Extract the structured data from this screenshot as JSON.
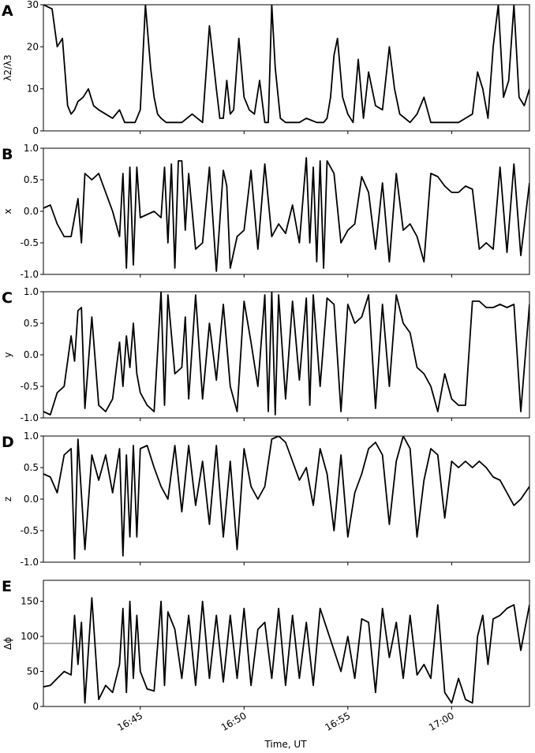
{
  "figure": {
    "xlabel": "Time, UT",
    "x_tick_labels": [
      "16:45",
      "16:50",
      "16:55",
      "17:00"
    ],
    "line_color": "#000000",
    "reference_line_color": "#555555"
  },
  "chart_data": [
    {
      "type": "line",
      "panel": "A",
      "ylabel": "λ2/λ3",
      "ylim": [
        0,
        30
      ],
      "yticks": [
        0,
        10,
        20,
        30
      ],
      "xlim": [
        "16:40:20",
        "17:03:45"
      ],
      "series": [
        {
          "x": [
            "16:40:20",
            "16:40:45",
            "16:41:00",
            "16:41:15",
            "16:41:30",
            "16:41:40",
            "16:41:50",
            "16:42:00",
            "16:42:15",
            "16:42:30",
            "16:42:45",
            "16:43:00",
            "16:43:20",
            "16:43:40",
            "16:44:00",
            "16:44:15",
            "16:44:30",
            "16:44:45",
            "16:45:00",
            "16:45:15",
            "16:45:30",
            "16:45:40",
            "16:45:50",
            "16:46:00",
            "16:46:15",
            "16:46:30",
            "16:47:00",
            "16:47:30",
            "16:48:00",
            "16:48:20",
            "16:48:40",
            "16:48:50",
            "16:49:00",
            "16:49:10",
            "16:49:20",
            "16:49:30",
            "16:49:45",
            "16:50:00",
            "16:50:15",
            "16:50:30",
            "16:50:45",
            "16:51:00",
            "16:51:10",
            "16:51:20",
            "16:51:30",
            "16:51:45",
            "16:52:00",
            "16:52:20",
            "16:52:40",
            "16:53:00",
            "16:53:30",
            "16:53:50",
            "16:54:00",
            "16:54:10",
            "16:54:20",
            "16:54:30",
            "16:54:45",
            "16:55:00",
            "16:55:15",
            "16:55:30",
            "16:55:45",
            "16:56:00",
            "16:56:20",
            "16:56:40",
            "16:57:00",
            "16:57:15",
            "16:57:30",
            "16:57:45",
            "16:58:00",
            "16:58:20",
            "16:58:40",
            "16:59:00",
            "16:59:20",
            "16:59:40",
            "17:00:00",
            "17:00:20",
            "17:00:40",
            "17:01:00",
            "17:01:15",
            "17:01:30",
            "17:01:45",
            "17:02:00",
            "17:02:15",
            "17:02:30",
            "17:02:45",
            "17:03:00",
            "17:03:15",
            "17:03:30",
            "17:03:45"
          ],
          "y": [
            30,
            29,
            20,
            22,
            6,
            4,
            5,
            7,
            8,
            10,
            6,
            5,
            4,
            3,
            5,
            2,
            2,
            2,
            5,
            30,
            15,
            8,
            4,
            3,
            2,
            2,
            2,
            4,
            2,
            25,
            10,
            3,
            3,
            12,
            4,
            5,
            22,
            8,
            5,
            4,
            12,
            2,
            2,
            30,
            15,
            3,
            2,
            2,
            2,
            3,
            2,
            2,
            3,
            8,
            18,
            22,
            8,
            4,
            2,
            17,
            3,
            14,
            6,
            5,
            20,
            10,
            4,
            3,
            2,
            4,
            8,
            2,
            2,
            2,
            2,
            2,
            3,
            4,
            14,
            10,
            3,
            20,
            30,
            8,
            12,
            30,
            8,
            6,
            10
          ]
        }
      ]
    },
    {
      "type": "line",
      "panel": "B",
      "ylabel": "x",
      "ylim": [
        -1.0,
        1.0
      ],
      "yticks": [
        -1.0,
        -0.5,
        0.0,
        0.5,
        1.0
      ],
      "xlim": [
        "16:40:20",
        "17:03:45"
      ],
      "series": [
        {
          "x": [
            "16:40:20",
            "16:40:40",
            "16:41:00",
            "16:41:20",
            "16:41:40",
            "16:42:00",
            "16:42:10",
            "16:42:20",
            "16:42:40",
            "16:43:00",
            "16:43:20",
            "16:43:40",
            "16:44:00",
            "16:44:10",
            "16:44:20",
            "16:44:30",
            "16:44:40",
            "16:44:50",
            "16:45:00",
            "16:45:20",
            "16:45:40",
            "16:46:00",
            "16:46:10",
            "16:46:20",
            "16:46:30",
            "16:46:40",
            "16:46:50",
            "16:47:00",
            "16:47:10",
            "16:47:20",
            "16:47:40",
            "16:48:00",
            "16:48:20",
            "16:48:40",
            "16:49:00",
            "16:49:10",
            "16:49:20",
            "16:49:40",
            "16:50:00",
            "16:50:20",
            "16:50:40",
            "16:51:00",
            "16:51:20",
            "16:51:40",
            "16:52:00",
            "16:52:20",
            "16:52:40",
            "16:53:00",
            "16:53:10",
            "16:53:20",
            "16:53:30",
            "16:53:40",
            "16:53:50",
            "16:54:00",
            "16:54:20",
            "16:54:40",
            "16:55:00",
            "16:55:20",
            "16:55:40",
            "16:56:00",
            "16:56:20",
            "16:56:40",
            "16:57:00",
            "16:57:20",
            "16:57:40",
            "16:58:00",
            "16:58:20",
            "16:58:40",
            "16:59:00",
            "16:59:20",
            "16:59:40",
            "17:00:00",
            "17:00:20",
            "17:00:40",
            "17:01:00",
            "17:01:20",
            "17:01:40",
            "17:02:00",
            "17:02:20",
            "17:02:40",
            "17:03:00",
            "17:03:20",
            "17:03:45"
          ],
          "y": [
            0.05,
            0.1,
            -0.2,
            -0.4,
            -0.4,
            0.2,
            -0.5,
            0.6,
            0.5,
            0.6,
            0.3,
            0.0,
            -0.4,
            0.6,
            -0.9,
            0.7,
            -0.85,
            0.7,
            -0.1,
            -0.05,
            0.0,
            -0.1,
            0.7,
            -0.5,
            0.75,
            -0.9,
            0.8,
            0.8,
            -0.3,
            0.6,
            -0.6,
            -0.5,
            0.7,
            -0.95,
            0.65,
            0.4,
            -0.9,
            -0.4,
            -0.3,
            0.65,
            -0.6,
            0.75,
            -0.4,
            -0.2,
            -0.35,
            0.1,
            -0.5,
            0.85,
            -0.5,
            0.7,
            -0.8,
            0.8,
            -0.9,
            0.8,
            0.6,
            -0.5,
            -0.3,
            -0.2,
            0.55,
            0.3,
            -0.6,
            0.45,
            -0.8,
            0.6,
            -0.3,
            -0.2,
            -0.4,
            -0.8,
            0.6,
            0.55,
            0.4,
            0.3,
            0.3,
            0.4,
            0.35,
            -0.6,
            -0.5,
            -0.6,
            0.7,
            -0.65,
            0.75,
            -0.7,
            0.45
          ]
        }
      ]
    },
    {
      "type": "line",
      "panel": "C",
      "ylabel": "y",
      "ylim": [
        -1.0,
        1.0
      ],
      "yticks": [
        -1.0,
        -0.5,
        0.0,
        0.5,
        1.0
      ],
      "xlim": [
        "16:40:20",
        "17:03:45"
      ],
      "series": [
        {
          "x": [
            "16:40:20",
            "16:40:40",
            "16:41:00",
            "16:41:20",
            "16:41:40",
            "16:41:50",
            "16:42:00",
            "16:42:10",
            "16:42:20",
            "16:42:40",
            "16:43:00",
            "16:43:20",
            "16:43:40",
            "16:44:00",
            "16:44:10",
            "16:44:20",
            "16:44:30",
            "16:44:40",
            "16:44:50",
            "16:45:00",
            "16:45:20",
            "16:45:40",
            "16:46:00",
            "16:46:10",
            "16:46:20",
            "16:46:40",
            "16:47:00",
            "16:47:10",
            "16:47:20",
            "16:47:40",
            "16:48:00",
            "16:48:20",
            "16:48:40",
            "16:49:00",
            "16:49:20",
            "16:49:40",
            "16:50:00",
            "16:50:20",
            "16:50:40",
            "16:51:00",
            "16:51:10",
            "16:51:20",
            "16:51:30",
            "16:51:40",
            "16:52:00",
            "16:52:20",
            "16:52:40",
            "16:53:00",
            "16:53:10",
            "16:53:20",
            "16:53:40",
            "16:54:00",
            "16:54:20",
            "16:54:40",
            "16:55:00",
            "16:55:20",
            "16:55:40",
            "16:56:00",
            "16:56:20",
            "16:56:40",
            "16:57:00",
            "16:57:20",
            "16:57:40",
            "16:58:00",
            "16:58:20",
            "16:58:40",
            "16:59:00",
            "16:59:20",
            "16:59:40",
            "17:00:00",
            "17:00:20",
            "17:00:40",
            "17:01:00",
            "17:01:20",
            "17:01:40",
            "17:02:00",
            "17:02:20",
            "17:02:40",
            "17:03:00",
            "17:03:20",
            "17:03:45"
          ],
          "y": [
            -0.9,
            -0.95,
            -0.6,
            -0.5,
            0.3,
            -0.1,
            0.7,
            0.75,
            -0.85,
            0.6,
            -0.8,
            -0.9,
            -0.7,
            0.2,
            -0.5,
            0.3,
            -0.2,
            0.5,
            -0.3,
            -0.6,
            -0.8,
            -0.9,
            1.0,
            -0.8,
            0.95,
            -0.3,
            -0.2,
            0.6,
            -0.7,
            0.95,
            -0.7,
            0.5,
            -0.4,
            0.8,
            -0.5,
            -0.9,
            0.85,
            0.2,
            -0.5,
            0.95,
            -0.9,
            1.0,
            -0.95,
            0.95,
            -0.7,
            0.85,
            -0.4,
            0.9,
            -0.8,
            0.95,
            -0.5,
            0.9,
            0.8,
            -0.9,
            0.8,
            0.5,
            0.6,
            0.95,
            -0.85,
            0.8,
            -0.5,
            0.95,
            0.5,
            0.35,
            -0.2,
            -0.3,
            -0.5,
            -0.9,
            -0.3,
            -0.7,
            -0.8,
            -0.8,
            0.85,
            0.85,
            0.75,
            0.75,
            0.8,
            0.75,
            0.8,
            -0.9,
            0.8
          ]
        }
      ]
    },
    {
      "type": "line",
      "panel": "D",
      "ylabel": "z",
      "ylim": [
        -1.0,
        1.0
      ],
      "yticks": [
        -1.0,
        -0.5,
        0.0,
        0.5,
        1.0
      ],
      "xlim": [
        "16:40:20",
        "17:03:45"
      ],
      "series": [
        {
          "x": [
            "16:40:20",
            "16:40:40",
            "16:41:00",
            "16:41:20",
            "16:41:40",
            "16:41:50",
            "16:42:00",
            "16:42:20",
            "16:42:40",
            "16:43:00",
            "16:43:20",
            "16:43:40",
            "16:44:00",
            "16:44:10",
            "16:44:20",
            "16:44:30",
            "16:44:40",
            "16:44:50",
            "16:45:00",
            "16:45:20",
            "16:45:40",
            "16:46:00",
            "16:46:20",
            "16:46:40",
            "16:47:00",
            "16:47:20",
            "16:47:40",
            "16:48:00",
            "16:48:20",
            "16:48:40",
            "16:49:00",
            "16:49:20",
            "16:49:40",
            "16:50:00",
            "16:50:20",
            "16:50:40",
            "16:51:00",
            "16:51:20",
            "16:51:40",
            "16:52:00",
            "16:52:20",
            "16:52:40",
            "16:53:00",
            "16:53:20",
            "16:53:40",
            "16:54:00",
            "16:54:20",
            "16:54:40",
            "16:55:00",
            "16:55:20",
            "16:55:40",
            "16:56:00",
            "16:56:20",
            "16:56:40",
            "16:57:00",
            "16:57:20",
            "16:57:40",
            "16:58:00",
            "16:58:20",
            "16:58:40",
            "16:59:00",
            "16:59:20",
            "16:59:40",
            "17:00:00",
            "17:00:20",
            "17:00:40",
            "17:01:00",
            "17:01:20",
            "17:01:40",
            "17:02:00",
            "17:02:20",
            "17:02:40",
            "17:03:00",
            "17:03:20",
            "17:03:45"
          ],
          "y": [
            0.4,
            0.35,
            0.1,
            0.7,
            0.8,
            -0.95,
            0.95,
            -0.8,
            0.7,
            0.3,
            0.7,
            0.1,
            0.8,
            -0.9,
            0.7,
            -0.6,
            0.85,
            -0.6,
            0.8,
            0.85,
            0.5,
            0.2,
            0.0,
            0.85,
            -0.2,
            0.85,
            -0.1,
            0.6,
            -0.4,
            0.85,
            -0.6,
            0.6,
            -0.8,
            0.8,
            0.2,
            0.0,
            0.2,
            0.95,
            1.0,
            0.9,
            0.6,
            0.3,
            0.5,
            -0.1,
            0.8,
            0.4,
            -0.5,
            0.7,
            -0.6,
            0.1,
            0.4,
            0.8,
            0.9,
            0.7,
            -0.4,
            0.6,
            1.0,
            0.8,
            -0.6,
            0.3,
            0.8,
            0.7,
            -0.3,
            0.6,
            0.5,
            0.6,
            0.5,
            0.6,
            0.5,
            0.35,
            0.3,
            0.1,
            -0.1,
            0.0,
            0.2
          ]
        }
      ]
    },
    {
      "type": "line",
      "panel": "E",
      "ylabel": "Δϕ",
      "ylim": [
        0,
        180
      ],
      "yticks": [
        0,
        50,
        100,
        150
      ],
      "reference_line_y": 90,
      "xlim": [
        "16:40:20",
        "17:03:45"
      ],
      "series": [
        {
          "x": [
            "16:40:20",
            "16:40:40",
            "16:41:00",
            "16:41:20",
            "16:41:40",
            "16:41:50",
            "16:42:00",
            "16:42:10",
            "16:42:20",
            "16:42:40",
            "16:43:00",
            "16:43:20",
            "16:43:40",
            "16:44:00",
            "16:44:10",
            "16:44:20",
            "16:44:30",
            "16:44:40",
            "16:44:50",
            "16:45:00",
            "16:45:20",
            "16:45:40",
            "16:46:00",
            "16:46:10",
            "16:46:20",
            "16:46:40",
            "16:47:00",
            "16:47:20",
            "16:47:40",
            "16:48:00",
            "16:48:20",
            "16:48:40",
            "16:49:00",
            "16:49:20",
            "16:49:40",
            "16:50:00",
            "16:50:20",
            "16:50:40",
            "16:51:00",
            "16:51:20",
            "16:51:40",
            "16:52:00",
            "16:52:20",
            "16:52:40",
            "16:53:00",
            "16:53:20",
            "16:53:40",
            "16:54:00",
            "16:54:20",
            "16:54:40",
            "16:55:00",
            "16:55:20",
            "16:55:40",
            "16:56:00",
            "16:56:20",
            "16:56:40",
            "16:57:00",
            "16:57:20",
            "16:57:40",
            "16:58:00",
            "16:58:20",
            "16:58:40",
            "16:59:00",
            "16:59:20",
            "16:59:40",
            "17:00:00",
            "17:00:20",
            "17:00:40",
            "17:01:00",
            "17:01:15",
            "17:01:30",
            "17:01:45",
            "17:02:00",
            "17:02:20",
            "17:02:40",
            "17:03:00",
            "17:03:20",
            "17:03:45"
          ],
          "y": [
            28,
            30,
            40,
            50,
            45,
            130,
            60,
            120,
            5,
            155,
            10,
            30,
            20,
            60,
            140,
            20,
            150,
            40,
            130,
            50,
            25,
            22,
            150,
            30,
            135,
            110,
            40,
            130,
            30,
            150,
            40,
            130,
            35,
            130,
            40,
            140,
            30,
            110,
            120,
            40,
            140,
            30,
            130,
            40,
            120,
            30,
            140,
            110,
            80,
            50,
            100,
            40,
            125,
            120,
            20,
            140,
            70,
            120,
            40,
            130,
            45,
            60,
            40,
            145,
            20,
            5,
            40,
            10,
            5,
            100,
            130,
            60,
            125,
            130,
            140,
            145,
            80,
            145
          ]
        }
      ]
    }
  ]
}
